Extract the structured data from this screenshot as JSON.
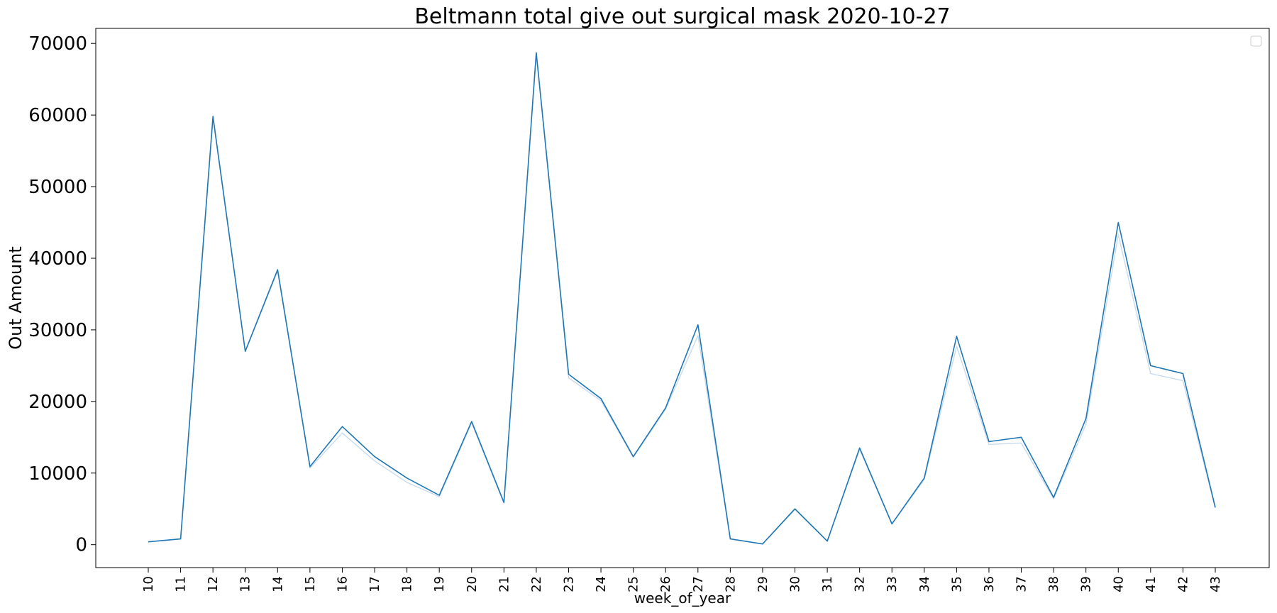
{
  "chart_data": {
    "type": "line",
    "title": "Beltmann total give out surgical mask 2020-10-27",
    "xlabel": "week_of_year",
    "ylabel": "Out Amount",
    "x": [
      10,
      11,
      12,
      13,
      14,
      15,
      16,
      17,
      18,
      19,
      20,
      21,
      22,
      23,
      24,
      25,
      26,
      27,
      28,
      29,
      30,
      31,
      32,
      33,
      34,
      35,
      36,
      37,
      38,
      39,
      40,
      41,
      42,
      43
    ],
    "ylim": [
      -3200,
      72100
    ],
    "yticks": [
      0,
      10000,
      20000,
      30000,
      40000,
      50000,
      60000,
      70000
    ],
    "grid": false,
    "legend": "top-right (empty)",
    "series": [
      {
        "color": "#1f77b4",
        "values": [
          400,
          800,
          59800,
          27000,
          38400,
          10900,
          16500,
          12300,
          9300,
          6900,
          17200,
          5900,
          68700,
          23800,
          20400,
          12300,
          19100,
          30700,
          800,
          100,
          5000,
          500,
          13500,
          2900,
          9300,
          29100,
          14400,
          15000,
          6600,
          17600,
          45000,
          25000,
          23900,
          5200
        ]
      },
      {
        "color": "#c6dbef",
        "values": [
          400,
          800,
          59500,
          27000,
          38200,
          10700,
          15600,
          11700,
          8700,
          6700,
          17000,
          5800,
          68500,
          23300,
          20100,
          12200,
          18900,
          29200,
          800,
          100,
          4900,
          500,
          13300,
          2900,
          9100,
          27700,
          14000,
          14200,
          6400,
          16800,
          43300,
          23900,
          22900,
          5100
        ]
      }
    ]
  }
}
